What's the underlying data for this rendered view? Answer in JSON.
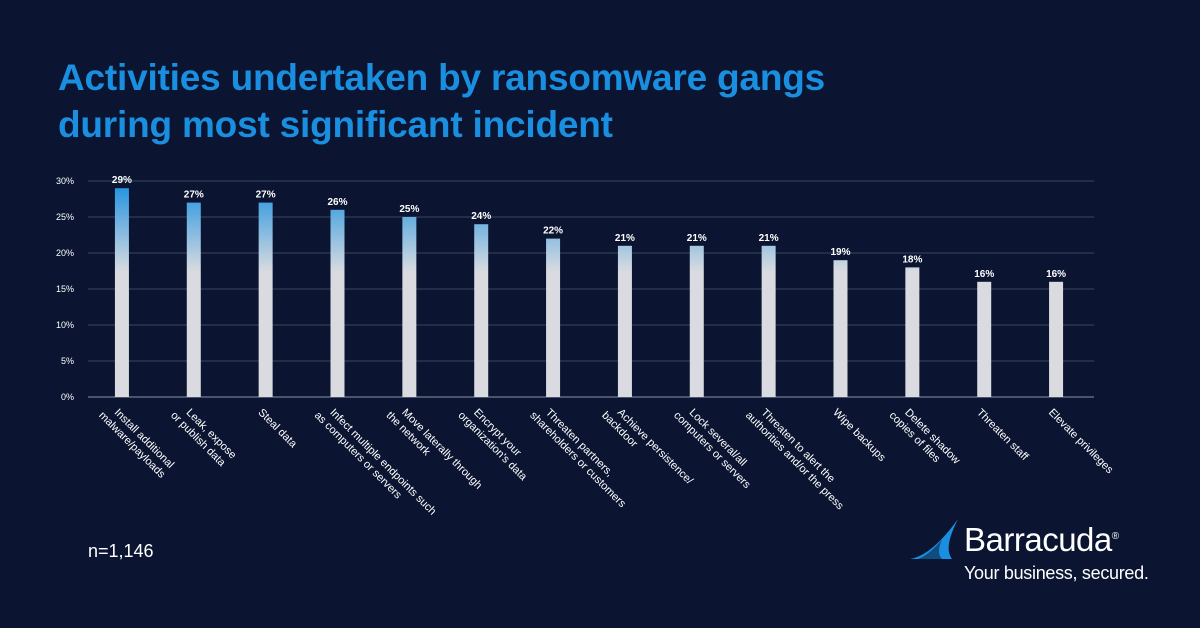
{
  "title_lines": [
    "Activities undertaken by ransomware gangs",
    "during most significant incident"
  ],
  "sample_note": "n=1,146",
  "brand": {
    "name": "Barracuda",
    "tagline": "Your business, secured.",
    "accent": "#1a8fe0",
    "background": "#0b1531"
  },
  "chart_data": {
    "type": "bar",
    "title": "Activities undertaken by ransomware gangs during most significant incident",
    "xlabel": "",
    "ylabel": "",
    "ylim": [
      0,
      30
    ],
    "yticks": [
      0,
      5,
      10,
      15,
      20,
      25,
      30
    ],
    "ytick_labels": [
      "0%",
      "5%",
      "10%",
      "15%",
      "20%",
      "25%",
      "30%"
    ],
    "grid": true,
    "bar_gradient": [
      "#1a8fe0",
      "#d9dbe0"
    ],
    "categories": [
      [
        "Install additional",
        "malware/payloads"
      ],
      [
        "Leak, expose",
        "or publish data"
      ],
      [
        "Steal data"
      ],
      [
        "Infect multiple endpoints such",
        "as computers or servers"
      ],
      [
        "Move laterally through",
        "the network"
      ],
      [
        "Encrypt your",
        "organization's data"
      ],
      [
        "Threaten partners,",
        "shareholders or customers"
      ],
      [
        "Achieve persistence/",
        "backdoor"
      ],
      [
        "Lock several/all",
        "computers or servers"
      ],
      [
        "Threaten to alert the",
        "authorities and/or the press"
      ],
      [
        "Wipe backups"
      ],
      [
        "Delete shadow",
        "copies of files"
      ],
      [
        "Threaten staff"
      ],
      [
        "Elevate privileges"
      ]
    ],
    "values": [
      29,
      27,
      27,
      26,
      25,
      24,
      22,
      21,
      21,
      21,
      19,
      18,
      16,
      16
    ],
    "value_labels": [
      "29%",
      "27%",
      "27%",
      "26%",
      "25%",
      "24%",
      "22%",
      "21%",
      "21%",
      "21%",
      "19%",
      "18%",
      "16%",
      "16%"
    ]
  }
}
